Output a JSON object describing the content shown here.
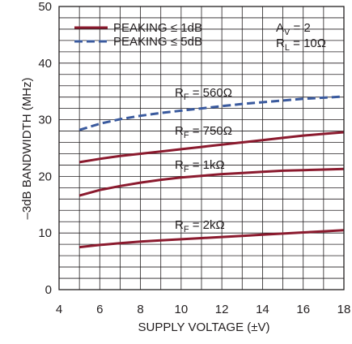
{
  "chart_data": {
    "type": "line",
    "xlabel": "SUPPLY VOLTAGE (±V)",
    "ylabel": "–3dB BANDWIDTH (MHz)",
    "xlim": [
      4,
      18
    ],
    "ylim": [
      0,
      50
    ],
    "xticks": [
      4,
      6,
      8,
      10,
      12,
      14,
      16,
      18
    ],
    "yticks": [
      0,
      10,
      20,
      30,
      40,
      50
    ],
    "grid": true,
    "legend_position": "top-left",
    "legend": [
      {
        "label": "PEAKING ≤ 1dB",
        "style": "solid",
        "color": "#8b1a2e"
      },
      {
        "label": "PEAKING ≤ 5dB",
        "style": "dashed",
        "color": "#3a5a9e"
      }
    ],
    "conditions": {
      "av_main": "A",
      "av_sub": "V",
      "av_rest": " = 2",
      "rl_main": "R",
      "rl_sub": "L",
      "rl_rest": " = 10Ω"
    },
    "series": [
      {
        "label_main": "R",
        "label_sub": "F",
        "label_rest": " = 560Ω",
        "style": "dashed",
        "color": "#3a5a9e",
        "x": [
          5,
          6,
          7,
          8,
          9,
          10,
          11,
          12,
          13,
          14,
          15,
          16,
          17,
          18
        ],
        "y": [
          28.2,
          29.3,
          30.1,
          30.7,
          31.2,
          31.6,
          32.0,
          32.4,
          32.8,
          33.1,
          33.4,
          33.7,
          33.9,
          34.1
        ]
      },
      {
        "label_main": "R",
        "label_sub": "F",
        "label_rest": " = 750Ω",
        "style": "solid",
        "color": "#8b1a2e",
        "x": [
          5,
          6,
          7,
          8,
          9,
          10,
          11,
          12,
          13,
          14,
          15,
          16,
          17,
          18
        ],
        "y": [
          22.5,
          23.1,
          23.6,
          24.0,
          24.4,
          24.8,
          25.2,
          25.6,
          26.0,
          26.4,
          26.8,
          27.2,
          27.5,
          27.8
        ]
      },
      {
        "label_main": "R",
        "label_sub": "F",
        "label_rest": " = 1kΩ",
        "style": "solid",
        "color": "#8b1a2e",
        "x": [
          5,
          6,
          7,
          8,
          9,
          10,
          11,
          12,
          13,
          14,
          15,
          16,
          17,
          18
        ],
        "y": [
          16.6,
          17.6,
          18.3,
          18.9,
          19.4,
          19.8,
          20.1,
          20.4,
          20.6,
          20.8,
          21.0,
          21.1,
          21.2,
          21.3
        ]
      },
      {
        "label_main": "R",
        "label_sub": "F",
        "label_rest": " = 2kΩ",
        "style": "solid",
        "color": "#8b1a2e",
        "x": [
          5,
          6,
          7,
          8,
          9,
          10,
          11,
          12,
          13,
          14,
          15,
          16,
          17,
          18
        ],
        "y": [
          7.5,
          7.9,
          8.2,
          8.5,
          8.7,
          8.9,
          9.1,
          9.3,
          9.5,
          9.7,
          9.9,
          10.1,
          10.3,
          10.5
        ]
      }
    ]
  }
}
